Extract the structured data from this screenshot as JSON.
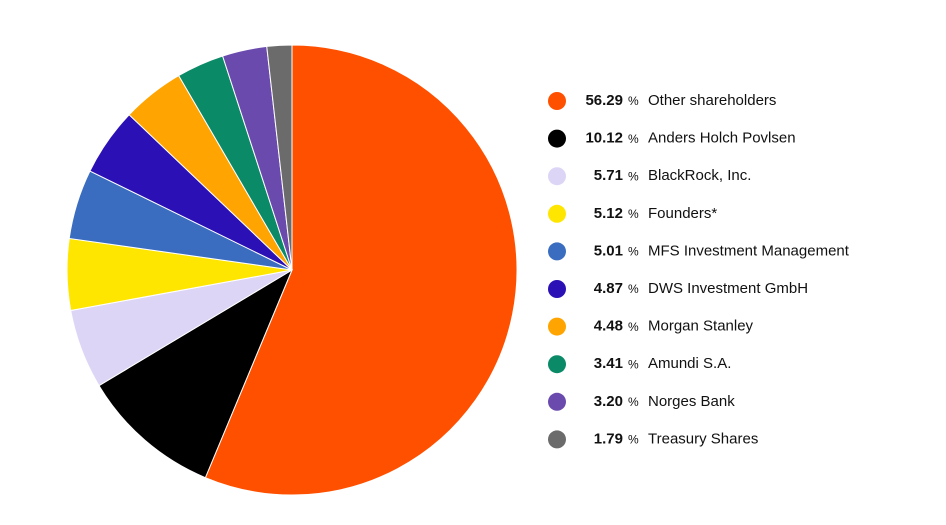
{
  "chart_data": {
    "type": "pie",
    "categories": [
      "Other shareholders",
      "Anders Holch Povlsen",
      "BlackRock, Inc.",
      "Founders*",
      "MFS Investment Management",
      "DWS Investment GmbH",
      "Morgan Stanley",
      "Amundi S.A.",
      "Norges Bank",
      "Treasury Shares"
    ],
    "values": [
      56.29,
      10.12,
      5.71,
      5.12,
      5.01,
      4.87,
      4.48,
      3.41,
      3.2,
      1.79
    ],
    "value_labels": [
      "56.29",
      "10.12",
      "5.71",
      "5.12",
      "5.01",
      "4.87",
      "4.48",
      "3.41",
      "3.20",
      "1.79"
    ],
    "unit": "%",
    "colors": [
      "#ff5000",
      "#000000",
      "#ddd5f6",
      "#ffe600",
      "#3a6cc0",
      "#2a10b5",
      "#ffa400",
      "#0b8a68",
      "#6b4aae",
      "#6b6b6b"
    ]
  }
}
